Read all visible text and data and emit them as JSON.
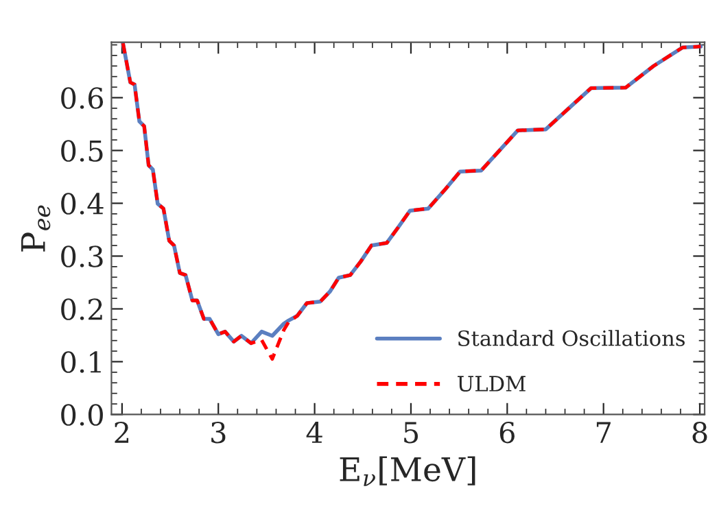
{
  "chart_data": {
    "type": "line",
    "xlabel": "E$_{ν}$[MeV]",
    "ylabel": "P$_{ee}$",
    "x": [
      2.01,
      2.086,
      2.13,
      2.18,
      2.23,
      2.276,
      2.32,
      2.37,
      2.43,
      2.49,
      2.54,
      2.6,
      2.66,
      2.73,
      2.78,
      2.85,
      2.91,
      3.0,
      3.07,
      3.16,
      3.24,
      3.34,
      3.45,
      3.56,
      3.68,
      3.73,
      3.82,
      3.92,
      4.06,
      4.16,
      4.25,
      4.37,
      4.48,
      4.59,
      4.75,
      4.87,
      4.99,
      5.18,
      5.35,
      5.51,
      5.73,
      5.92,
      6.11,
      6.4,
      6.64,
      6.87,
      7.23,
      7.52,
      7.82,
      8.01
    ],
    "series": [
      {
        "name": "Standard Oscillations",
        "color": "#5b7fc0",
        "line_style": "solid",
        "values": [
          0.703,
          0.629,
          0.625,
          0.555,
          0.546,
          0.472,
          0.464,
          0.399,
          0.39,
          0.329,
          0.32,
          0.268,
          0.264,
          0.216,
          0.216,
          0.181,
          0.181,
          0.152,
          0.157,
          0.138,
          0.149,
          0.135,
          0.157,
          0.149,
          0.172,
          0.178,
          0.187,
          0.211,
          0.214,
          0.233,
          0.259,
          0.264,
          0.29,
          0.32,
          0.325,
          0.355,
          0.386,
          0.39,
          0.425,
          0.46,
          0.462,
          0.5,
          0.538,
          0.54,
          0.58,
          0.618,
          0.619,
          0.66,
          0.695,
          0.697
        ]
      },
      {
        "name": "ULDM",
        "color": "#ff0000",
        "line_style": "dashed",
        "values": [
          0.703,
          0.629,
          0.625,
          0.555,
          0.546,
          0.472,
          0.464,
          0.399,
          0.39,
          0.329,
          0.32,
          0.268,
          0.264,
          0.216,
          0.216,
          0.181,
          0.181,
          0.152,
          0.157,
          0.138,
          0.149,
          0.135,
          0.141,
          0.105,
          0.16,
          0.175,
          0.187,
          0.211,
          0.214,
          0.233,
          0.259,
          0.264,
          0.29,
          0.32,
          0.325,
          0.355,
          0.386,
          0.39,
          0.425,
          0.46,
          0.462,
          0.5,
          0.538,
          0.54,
          0.58,
          0.618,
          0.619,
          0.66,
          0.695,
          0.697
        ]
      }
    ],
    "xlim": [
      1.89,
      8.05
    ],
    "ylim": [
      0,
      0.705
    ],
    "xticks": [
      2,
      3,
      4,
      5,
      6,
      7,
      8
    ],
    "yticks": [
      {
        "value": 0,
        "label": "0.0"
      },
      {
        "value": 0.1,
        "label": "0.1"
      },
      {
        "value": 0.2,
        "label": "0.2"
      },
      {
        "value": 0.3,
        "label": "0.3"
      },
      {
        "value": 0.4,
        "label": "0.4"
      },
      {
        "value": 0.5,
        "label": "0.5"
      },
      {
        "value": 0.6,
        "label": "0.6"
      }
    ],
    "grid": false,
    "legend": "bottom right"
  }
}
